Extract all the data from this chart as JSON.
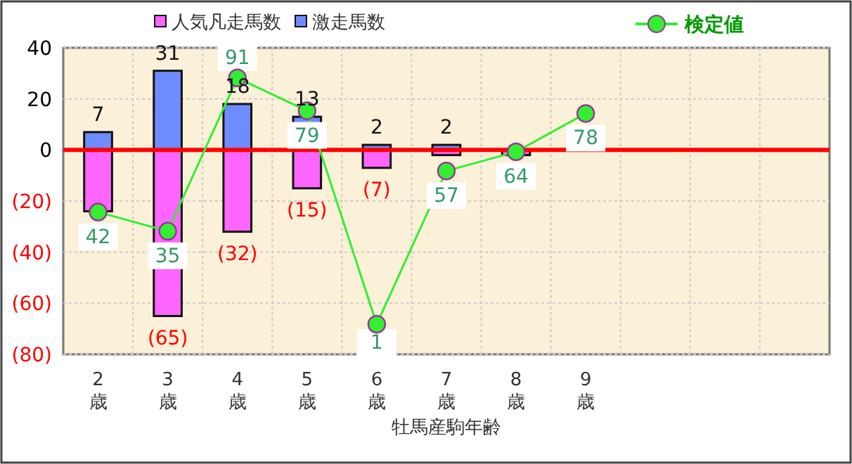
{
  "chart_data": {
    "type": "bar",
    "stacked": true,
    "xlabel": "牡馬産駒年齢",
    "categories": [
      "2歳",
      "3歳",
      "4歳",
      "5歳",
      "6歳",
      "7歳",
      "8歳",
      "9歳",
      null,
      null,
      null
    ],
    "series": [
      {
        "name": "人気凡走馬数",
        "color": "#ff66ff",
        "values": [
          -24,
          -65,
          -32,
          -15,
          -7,
          -2,
          -2,
          null,
          null,
          null,
          null
        ],
        "value_labels": [
          null,
          "(65)",
          "(32)",
          "(15)",
          "(7)",
          null,
          null,
          null,
          null,
          null,
          null
        ]
      },
      {
        "name": "激走馬数",
        "color": "#6f8cff",
        "values": [
          7,
          31,
          18,
          13,
          2,
          2,
          null,
          null,
          null,
          null,
          null
        ],
        "value_labels": [
          "7",
          "31",
          "18",
          "13",
          "2",
          "2",
          null,
          null,
          null,
          null,
          null
        ]
      },
      {
        "name": "検定値",
        "type": "line",
        "axis": "y2",
        "color": "#33ee33",
        "marker": "circle",
        "values": [
          42,
          35,
          91,
          79,
          1,
          57,
          64,
          78,
          null,
          null,
          null
        ]
      }
    ],
    "y2lim": [
      -10,
      102
    ],
    "data_labels": true,
    "ylim": [
      -80,
      40
    ],
    "yticks": [
      40,
      20,
      0,
      {
        "value": -20,
        "label": "(20)"
      },
      {
        "value": -40,
        "label": "(40)"
      },
      {
        "value": -60,
        "label": "(60)"
      },
      {
        "value": -80,
        "label": "(80)"
      }
    ],
    "ref_lines": [
      {
        "axis": "y",
        "value": 0,
        "color": "#ff0000"
      }
    ],
    "grid": true,
    "legend": "top"
  }
}
